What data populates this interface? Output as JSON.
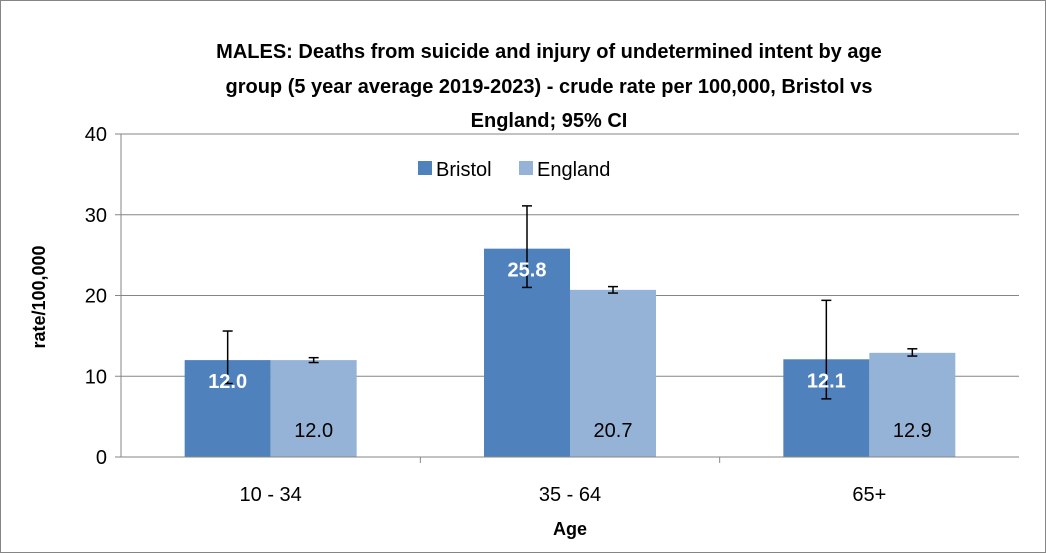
{
  "chart_data": {
    "type": "bar",
    "title_lines": [
      "MALES: Deaths from suicide and injury of undetermined intent by age",
      "group (5 year average 2019-2023) - crude rate per 100,000, Bristol vs",
      "England; 95% CI"
    ],
    "xlabel": "Age",
    "ylabel": "rate/100,000",
    "ylim": [
      0,
      40
    ],
    "yticks": [
      0,
      10,
      20,
      30,
      40
    ],
    "categories": [
      "10 - 34",
      "35 - 64",
      "65+"
    ],
    "series": [
      {
        "name": "Bristol",
        "color": "#4f81bd",
        "values": [
          12.0,
          25.8,
          12.1
        ],
        "ci_low": [
          9.1,
          21.0,
          7.2
        ],
        "ci_high": [
          15.6,
          31.1,
          19.4
        ],
        "labels": [
          "12.0",
          "25.8",
          "12.1"
        ]
      },
      {
        "name": "England",
        "color": "#95b3d7",
        "values": [
          12.0,
          20.7,
          12.9
        ],
        "ci_low": [
          11.7,
          20.3,
          12.5
        ],
        "ci_high": [
          12.3,
          21.1,
          13.4
        ],
        "labels": [
          "12.0",
          "20.7",
          "12.9"
        ]
      }
    ],
    "legend": "top-center",
    "grid": true,
    "error_bars": "95% CI"
  }
}
